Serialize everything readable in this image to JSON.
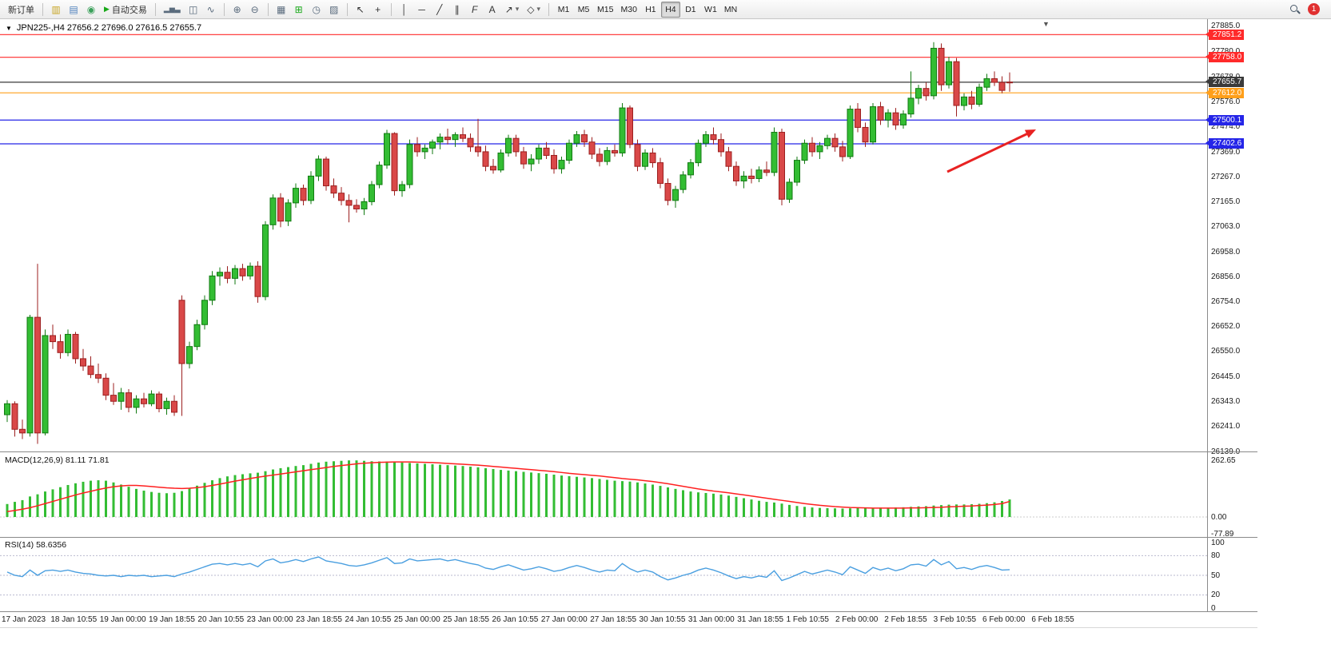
{
  "toolbar": {
    "new_order_label": "新订单",
    "autotrading_label": "自动交易",
    "timeframes": [
      "M1",
      "M5",
      "M15",
      "M30",
      "H1",
      "H4",
      "D1",
      "W1",
      "MN"
    ],
    "active_timeframe": "H4",
    "notification_count": "1",
    "icons": {
      "market_watch": "▥",
      "data_window": "▤",
      "navigator": "◉",
      "autotrading_play": "▶",
      "bar_chart": "▂▅▃",
      "candle_chart": "◫",
      "line_chart": "∿",
      "zoom_in": "⊕",
      "zoom_out": "⊖",
      "tile_windows": "▦",
      "indicators": "⊞",
      "periods": "◷",
      "templates": "▨",
      "cursor": "↖",
      "crosshair": "+",
      "vertical_line": "│",
      "horizontal_line": "─",
      "trend_line": "╱",
      "channel": "∥",
      "fibonacci": "F",
      "text": "A",
      "arrows": "↗",
      "shapes": "◇",
      "dropdown": "▾"
    }
  },
  "chart_ui": {
    "collapse_icon": "▼",
    "shift_marker": "▼"
  },
  "chart_data": {
    "type": "candlestick",
    "symbol": "JPN225-",
    "timeframe": "H4",
    "title": "JPN225-,H4  27656.2 27696.0 27616.5 27655.7",
    "current_bar": {
      "open": "27656.2",
      "high": "27696.0",
      "low": "27616.5",
      "close": "27655.7"
    },
    "price_axis": {
      "range": [
        26139.0,
        27914.5
      ],
      "ticks": [
        "27885.0",
        "27780.0",
        "27678.0",
        "27576.0",
        "27474.0",
        "27369.0",
        "27267.0",
        "27165.0",
        "27063.0",
        "26958.0",
        "26856.0",
        "26754.0",
        "26652.0",
        "26550.0",
        "26445.0",
        "26343.0",
        "26241.0",
        "26139.0"
      ]
    },
    "hlines": [
      {
        "price": 27851.2,
        "label": "27851.2",
        "color": "#ff2a2a"
      },
      {
        "price": 27758.0,
        "label": "27758.0",
        "color": "#ff2a2a"
      },
      {
        "price": 27655.7,
        "label": "27655.7",
        "color": "#3a3a3a"
      },
      {
        "price": 27612.0,
        "label": "27612.0",
        "color": "#ff9f1a"
      },
      {
        "price": 27500.1,
        "label": "27500.1",
        "color": "#2525e8"
      },
      {
        "price": 27402.6,
        "label": "27402.6",
        "color": "#2525e8"
      }
    ],
    "colors": {
      "up": "#33bd33",
      "up_stroke": "#117a11",
      "down": "#d94848",
      "down_stroke": "#9c1f1f"
    },
    "candles_ohlc": [
      [
        26290,
        26350,
        26260,
        26335
      ],
      [
        26335,
        26345,
        26200,
        26230
      ],
      [
        26230,
        26270,
        26190,
        26215
      ],
      [
        26215,
        26700,
        26200,
        26690
      ],
      [
        26690,
        26910,
        26170,
        26215
      ],
      [
        26215,
        26640,
        26205,
        26615
      ],
      [
        26615,
        26660,
        26560,
        26590
      ],
      [
        26590,
        26620,
        26520,
        26545
      ],
      [
        26545,
        26640,
        26530,
        26620
      ],
      [
        26620,
        26630,
        26500,
        26520
      ],
      [
        26520,
        26560,
        26470,
        26490
      ],
      [
        26490,
        26530,
        26440,
        26455
      ],
      [
        26455,
        26500,
        26420,
        26440
      ],
      [
        26440,
        26460,
        26350,
        26370
      ],
      [
        26370,
        26420,
        26330,
        26345
      ],
      [
        26345,
        26400,
        26310,
        26380
      ],
      [
        26380,
        26395,
        26300,
        26320
      ],
      [
        26320,
        26370,
        26295,
        26355
      ],
      [
        26355,
        26380,
        26320,
        26335
      ],
      [
        26335,
        26390,
        26325,
        26375
      ],
      [
        26375,
        26385,
        26300,
        26315
      ],
      [
        26315,
        26360,
        26290,
        26345
      ],
      [
        26345,
        26370,
        26285,
        26300
      ],
      [
        26760,
        26780,
        26285,
        26500
      ],
      [
        26500,
        26590,
        26480,
        26570
      ],
      [
        26570,
        26680,
        26555,
        26660
      ],
      [
        26660,
        26780,
        26640,
        26760
      ],
      [
        26760,
        26880,
        26740,
        26860
      ],
      [
        26860,
        26895,
        26820,
        26875
      ],
      [
        26875,
        26900,
        26830,
        26850
      ],
      [
        26850,
        26905,
        26825,
        26890
      ],
      [
        26890,
        26910,
        26840,
        26860
      ],
      [
        26860,
        26915,
        26845,
        26900
      ],
      [
        26900,
        26920,
        26750,
        26775
      ],
      [
        26775,
        27085,
        26760,
        27070
      ],
      [
        27070,
        27195,
        27050,
        27180
      ],
      [
        27180,
        27200,
        27060,
        27085
      ],
      [
        27085,
        27175,
        27065,
        27160
      ],
      [
        27160,
        27240,
        27140,
        27220
      ],
      [
        27220,
        27235,
        27150,
        27170
      ],
      [
        27170,
        27290,
        27155,
        27270
      ],
      [
        27270,
        27355,
        27250,
        27340
      ],
      [
        27340,
        27350,
        27210,
        27230
      ],
      [
        27230,
        27260,
        27180,
        27200
      ],
      [
        27200,
        27225,
        27150,
        27170
      ],
      [
        27170,
        27195,
        27080,
        27150
      ],
      [
        27150,
        27175,
        27120,
        27135
      ],
      [
        27135,
        27180,
        27110,
        27165
      ],
      [
        27165,
        27250,
        27150,
        27235
      ],
      [
        27235,
        27330,
        27220,
        27315
      ],
      [
        27315,
        27460,
        27300,
        27445
      ],
      [
        27445,
        27450,
        27190,
        27210
      ],
      [
        27210,
        27250,
        27185,
        27235
      ],
      [
        27235,
        27420,
        27220,
        27400
      ],
      [
        27400,
        27430,
        27350,
        27370
      ],
      [
        27370,
        27400,
        27340,
        27385
      ],
      [
        27385,
        27420,
        27360,
        27410
      ],
      [
        27410,
        27445,
        27380,
        27430
      ],
      [
        27430,
        27465,
        27400,
        27420
      ],
      [
        27420,
        27450,
        27390,
        27440
      ],
      [
        27440,
        27470,
        27410,
        27425
      ],
      [
        27425,
        27445,
        27370,
        27390
      ],
      [
        27390,
        27505,
        27350,
        27370
      ],
      [
        27370,
        27395,
        27290,
        27310
      ],
      [
        27310,
        27340,
        27280,
        27295
      ],
      [
        27295,
        27380,
        27285,
        27365
      ],
      [
        27365,
        27440,
        27350,
        27425
      ],
      [
        27425,
        27440,
        27350,
        27370
      ],
      [
        27370,
        27390,
        27300,
        27320
      ],
      [
        27320,
        27360,
        27290,
        27340
      ],
      [
        27340,
        27400,
        27320,
        27385
      ],
      [
        27385,
        27410,
        27340,
        27355
      ],
      [
        27355,
        27380,
        27280,
        27300
      ],
      [
        27300,
        27350,
        27280,
        27335
      ],
      [
        27335,
        27420,
        27320,
        27405
      ],
      [
        27405,
        27455,
        27390,
        27440
      ],
      [
        27440,
        27460,
        27390,
        27410
      ],
      [
        27410,
        27430,
        27340,
        27360
      ],
      [
        27360,
        27385,
        27310,
        27330
      ],
      [
        27330,
        27390,
        27315,
        27375
      ],
      [
        27375,
        27400,
        27350,
        27365
      ],
      [
        27365,
        27570,
        27350,
        27550
      ],
      [
        27550,
        27560,
        27385,
        27400
      ],
      [
        27400,
        27420,
        27290,
        27310
      ],
      [
        27310,
        27380,
        27295,
        27365
      ],
      [
        27365,
        27385,
        27305,
        27325
      ],
      [
        27325,
        27345,
        27220,
        27240
      ],
      [
        27240,
        27260,
        27150,
        27170
      ],
      [
        27170,
        27230,
        27140,
        27215
      ],
      [
        27215,
        27290,
        27200,
        27275
      ],
      [
        27275,
        27340,
        27260,
        27325
      ],
      [
        27325,
        27420,
        27310,
        27405
      ],
      [
        27405,
        27455,
        27390,
        27440
      ],
      [
        27440,
        27470,
        27400,
        27420
      ],
      [
        27420,
        27445,
        27350,
        27370
      ],
      [
        27370,
        27390,
        27290,
        27310
      ],
      [
        27310,
        27330,
        27230,
        27250
      ],
      [
        27250,
        27290,
        27220,
        27270
      ],
      [
        27270,
        27300,
        27240,
        27260
      ],
      [
        27260,
        27310,
        27245,
        27295
      ],
      [
        27295,
        27330,
        27270,
        27285
      ],
      [
        27285,
        27470,
        27270,
        27450
      ],
      [
        27450,
        27465,
        27150,
        27175
      ],
      [
        27175,
        27260,
        27160,
        27245
      ],
      [
        27245,
        27350,
        27230,
        27335
      ],
      [
        27335,
        27420,
        27320,
        27405
      ],
      [
        27405,
        27430,
        27350,
        27370
      ],
      [
        27370,
        27410,
        27340,
        27395
      ],
      [
        27395,
        27440,
        27380,
        27425
      ],
      [
        27425,
        27445,
        27370,
        27390
      ],
      [
        27390,
        27415,
        27330,
        27350
      ],
      [
        27350,
        27560,
        27340,
        27545
      ],
      [
        27545,
        27570,
        27450,
        27470
      ],
      [
        27470,
        27490,
        27390,
        27410
      ],
      [
        27410,
        27570,
        27400,
        27555
      ],
      [
        27555,
        27575,
        27480,
        27500
      ],
      [
        27500,
        27545,
        27470,
        27530
      ],
      [
        27530,
        27550,
        27460,
        27480
      ],
      [
        27480,
        27540,
        27465,
        27525
      ],
      [
        27525,
        27700,
        27510,
        27590
      ],
      [
        27590,
        27645,
        27565,
        27630
      ],
      [
        27630,
        27655,
        27580,
        27600
      ],
      [
        27600,
        27820,
        27585,
        27795
      ],
      [
        27795,
        27815,
        27620,
        27645
      ],
      [
        27645,
        27760,
        27630,
        27740
      ],
      [
        27740,
        27755,
        27515,
        27560
      ],
      [
        27560,
        27610,
        27540,
        27595
      ],
      [
        27595,
        27620,
        27545,
        27565
      ],
      [
        27565,
        27650,
        27555,
        27635
      ],
      [
        27635,
        27690,
        27620,
        27670
      ],
      [
        27670,
        27700,
        27640,
        27655
      ],
      [
        27655,
        27680,
        27610,
        27622
      ],
      [
        27656.2,
        27696.0,
        27616.5,
        27655.7
      ]
    ],
    "trend_arrow": {
      "color": "#e82222",
      "direction": "up-right"
    },
    "macd": {
      "label": "MACD(12,26,9) 81.11 71.81",
      "params": [
        12,
        26,
        9
      ],
      "ticks": [
        "262.65",
        "0.00",
        "-77.89"
      ],
      "histogram_color": "#33bd33",
      "signal_color": "#ff2020",
      "histogram": [
        60,
        70,
        78,
        95,
        105,
        118,
        128,
        138,
        148,
        156,
        163,
        168,
        170,
        168,
        160,
        150,
        140,
        130,
        122,
        116,
        112,
        110,
        112,
        120,
        132,
        145,
        158,
        170,
        180,
        188,
        194,
        198,
        202,
        205,
        212,
        220,
        226,
        231,
        236,
        240,
        246,
        252,
        256,
        258,
        260,
        262,
        262,
        260,
        258,
        257,
        257,
        255,
        252,
        250,
        248,
        246,
        244,
        242,
        240,
        238,
        236,
        233,
        230,
        226,
        222,
        218,
        215,
        212,
        209,
        206,
        203,
        200,
        196,
        192,
        189,
        186,
        183,
        180,
        176,
        172,
        168,
        166,
        164,
        160,
        155,
        150,
        144,
        137,
        130,
        124,
        118,
        114,
        111,
        108,
        104,
        99,
        93,
        87,
        81,
        75,
        70,
        67,
        62,
        56,
        51,
        47,
        44,
        42,
        41,
        40,
        39,
        40,
        41,
        41,
        42,
        43,
        43,
        44,
        45,
        47,
        49,
        50,
        53,
        55,
        57,
        58,
        58,
        59,
        61,
        64,
        68,
        74,
        81.11
      ],
      "signal": [
        25,
        30,
        36,
        43,
        52,
        62,
        72,
        82,
        92,
        102,
        111,
        119,
        127,
        134,
        140,
        144,
        146,
        146,
        144,
        141,
        138,
        135,
        133,
        132,
        133,
        136,
        140,
        146,
        152,
        159,
        166,
        172,
        178,
        184,
        189,
        194,
        199,
        204,
        209,
        214,
        219,
        224,
        229,
        234,
        238,
        242,
        246,
        249,
        251,
        253,
        254,
        255,
        255,
        255,
        254,
        253,
        252,
        250,
        248,
        246,
        244,
        242,
        240,
        237,
        234,
        231,
        228,
        225,
        222,
        219,
        216,
        213,
        210,
        206,
        202,
        199,
        196,
        193,
        190,
        186,
        182,
        178,
        175,
        172,
        168,
        164,
        159,
        154,
        148,
        142,
        136,
        130,
        125,
        120,
        116,
        112,
        107,
        102,
        97,
        92,
        87,
        82,
        77,
        72,
        67,
        62,
        58,
        54,
        51,
        48,
        46,
        44,
        43,
        42,
        41,
        41,
        41,
        41,
        41,
        42,
        42,
        43,
        44,
        45,
        47,
        48,
        50,
        51,
        53,
        55,
        58,
        62,
        71.81
      ]
    },
    "rsi": {
      "label": "RSI(14) 58.6356",
      "current": 58.6356,
      "ticks": [
        "100",
        "80",
        "50",
        "20",
        "0"
      ],
      "levels": [
        80,
        50,
        20
      ],
      "line_color": "#4a9fe0",
      "values": [
        55,
        50,
        48,
        58,
        50,
        57,
        58,
        56,
        58,
        55,
        53,
        52,
        50,
        49,
        50,
        48,
        50,
        49,
        50,
        48,
        49,
        50,
        48,
        52,
        55,
        59,
        63,
        67,
        68,
        66,
        68,
        66,
        68,
        63,
        72,
        75,
        69,
        71,
        74,
        71,
        75,
        78,
        72,
        70,
        68,
        65,
        64,
        66,
        69,
        73,
        77,
        68,
        69,
        75,
        72,
        73,
        74,
        75,
        72,
        74,
        71,
        68,
        66,
        61,
        59,
        63,
        66,
        62,
        58,
        60,
        63,
        60,
        56,
        58,
        62,
        65,
        62,
        58,
        55,
        58,
        57,
        68,
        60,
        55,
        58,
        55,
        48,
        43,
        46,
        50,
        53,
        58,
        61,
        58,
        54,
        49,
        45,
        48,
        46,
        49,
        47,
        57,
        42,
        46,
        51,
        56,
        52,
        55,
        58,
        55,
        51,
        63,
        58,
        53,
        62,
        58,
        61,
        57,
        60,
        66,
        67,
        64,
        74,
        66,
        71,
        60,
        62,
        59,
        63,
        65,
        62,
        58,
        58.64
      ]
    },
    "time_axis": [
      "17 Jan 2023",
      "18 Jan 10:55",
      "19 Jan 00:00",
      "19 Jan 18:55",
      "20 Jan 10:55",
      "23 Jan 00:00",
      "23 Jan 18:55",
      "24 Jan 10:55",
      "25 Jan 00:00",
      "25 Jan 18:55",
      "26 Jan 10:55",
      "27 Jan 00:00",
      "27 Jan 18:55",
      "30 Jan 10:55",
      "31 Jan 00:00",
      "31 Jan 18:55",
      "1 Feb 10:55",
      "2 Feb 00:00",
      "2 Feb 18:55",
      "3 Feb 10:55",
      "6 Feb 00:00",
      "6 Feb 18:55"
    ]
  }
}
